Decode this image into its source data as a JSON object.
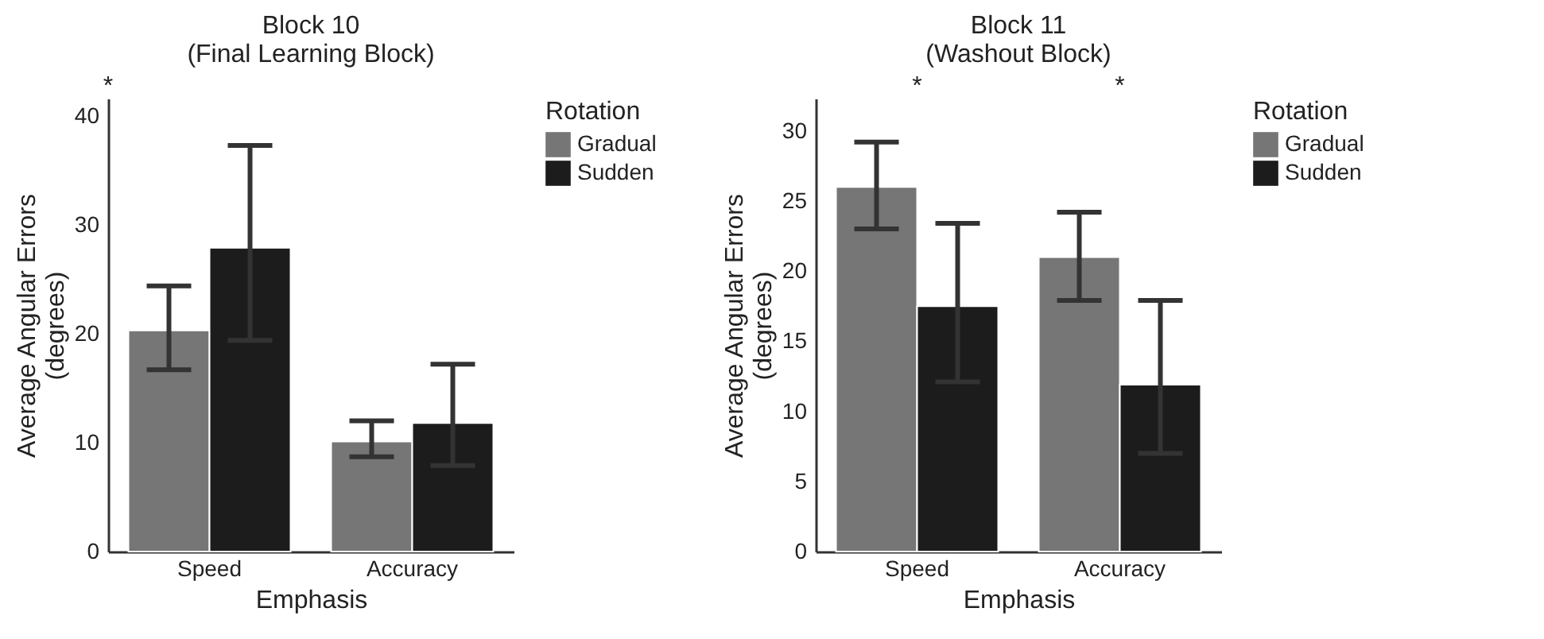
{
  "chart_data": [
    {
      "type": "bar",
      "title": "Block 10\n(Final Learning Block)",
      "xlabel": "Emphasis",
      "ylabel": "Average Angular Errors\n(degrees)",
      "legend_title": "Rotation",
      "legend": "right",
      "grid": false,
      "categories": [
        "Speed",
        "Accuracy"
      ],
      "ylim": [
        0,
        41.6
      ],
      "yticks": [
        0,
        10,
        20,
        30,
        40
      ],
      "series": [
        {
          "name": "Gradual",
          "color": "#767676",
          "values": [
            20.3,
            10.1
          ],
          "errors": [
            [
              16.7,
              24.4
            ],
            [
              8.7,
              12.0
            ]
          ]
        },
        {
          "name": "Sudden",
          "color": "#1c1c1c",
          "values": [
            27.9,
            11.8
          ],
          "errors": [
            [
              19.4,
              37.3
            ],
            [
              7.9,
              17.2
            ]
          ]
        }
      ],
      "annotations": [
        "*"
      ]
    },
    {
      "type": "bar",
      "title": "Block 11\n(Washout Block)",
      "xlabel": "Emphasis",
      "ylabel": "Average Angular Errors\n(degrees)",
      "legend_title": "Rotation",
      "legend": "right",
      "grid": false,
      "categories": [
        "Speed",
        "Accuracy"
      ],
      "ylim": [
        0,
        32.3
      ],
      "yticks": [
        0,
        5,
        10,
        15,
        20,
        25,
        30
      ],
      "series": [
        {
          "name": "Gradual",
          "color": "#767676",
          "values": [
            26.0,
            21.0
          ],
          "errors": [
            [
              23.0,
              29.2
            ],
            [
              17.9,
              24.2
            ]
          ]
        },
        {
          "name": "Sudden",
          "color": "#1c1c1c",
          "values": [
            17.5,
            11.9
          ],
          "errors": [
            [
              12.1,
              23.4
            ],
            [
              7.0,
              17.9
            ]
          ]
        }
      ],
      "annotations": [
        "*",
        "*"
      ]
    }
  ]
}
